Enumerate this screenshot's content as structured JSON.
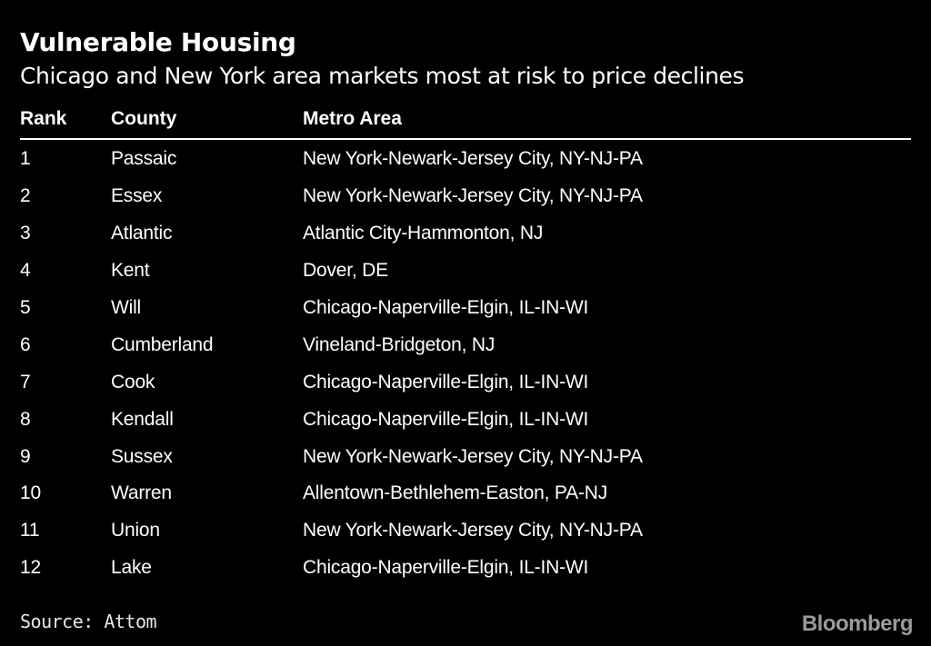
{
  "header": {
    "title": "Vulnerable Housing",
    "subtitle": "Chicago and New York area markets most at risk to price declines"
  },
  "footer": {
    "source": "Source: Attom",
    "brand": "Bloomberg"
  },
  "colors": {
    "background": "#000000",
    "text": "#ffffff",
    "rule": "#ffffff",
    "source_text": "#e6e6e6",
    "brand_text": "#9b9b9b"
  },
  "chart_data": {
    "type": "table",
    "title": "Vulnerable Housing",
    "subtitle": "Chicago and New York area markets most at risk to price declines",
    "columns": [
      "Rank",
      "County",
      "Metro Area"
    ],
    "rows": [
      [
        "1",
        "Passaic",
        "New York-Newark-Jersey City, NY-NJ-PA"
      ],
      [
        "2",
        "Essex",
        "New York-Newark-Jersey City, NY-NJ-PA"
      ],
      [
        "3",
        "Atlantic",
        "Atlantic City-Hammonton, NJ"
      ],
      [
        "4",
        "Kent",
        "Dover, DE"
      ],
      [
        "5",
        "Will",
        "Chicago-Naperville-Elgin, IL-IN-WI"
      ],
      [
        "6",
        "Cumberland",
        "Vineland-Bridgeton, NJ"
      ],
      [
        "7",
        "Cook",
        "Chicago-Naperville-Elgin, IL-IN-WI"
      ],
      [
        "8",
        "Kendall",
        "Chicago-Naperville-Elgin, IL-IN-WI"
      ],
      [
        "9",
        "Sussex",
        "New York-Newark-Jersey City, NY-NJ-PA"
      ],
      [
        "10",
        "Warren",
        "Allentown-Bethlehem-Easton, PA-NJ"
      ],
      [
        "11",
        "Union",
        "New York-Newark-Jersey City, NY-NJ-PA"
      ],
      [
        "12",
        "Lake",
        "Chicago-Naperville-Elgin, IL-IN-WI"
      ]
    ],
    "source": "Source: Attom",
    "brand": "Bloomberg",
    "layout": {
      "grid": false,
      "legend": "none"
    }
  }
}
